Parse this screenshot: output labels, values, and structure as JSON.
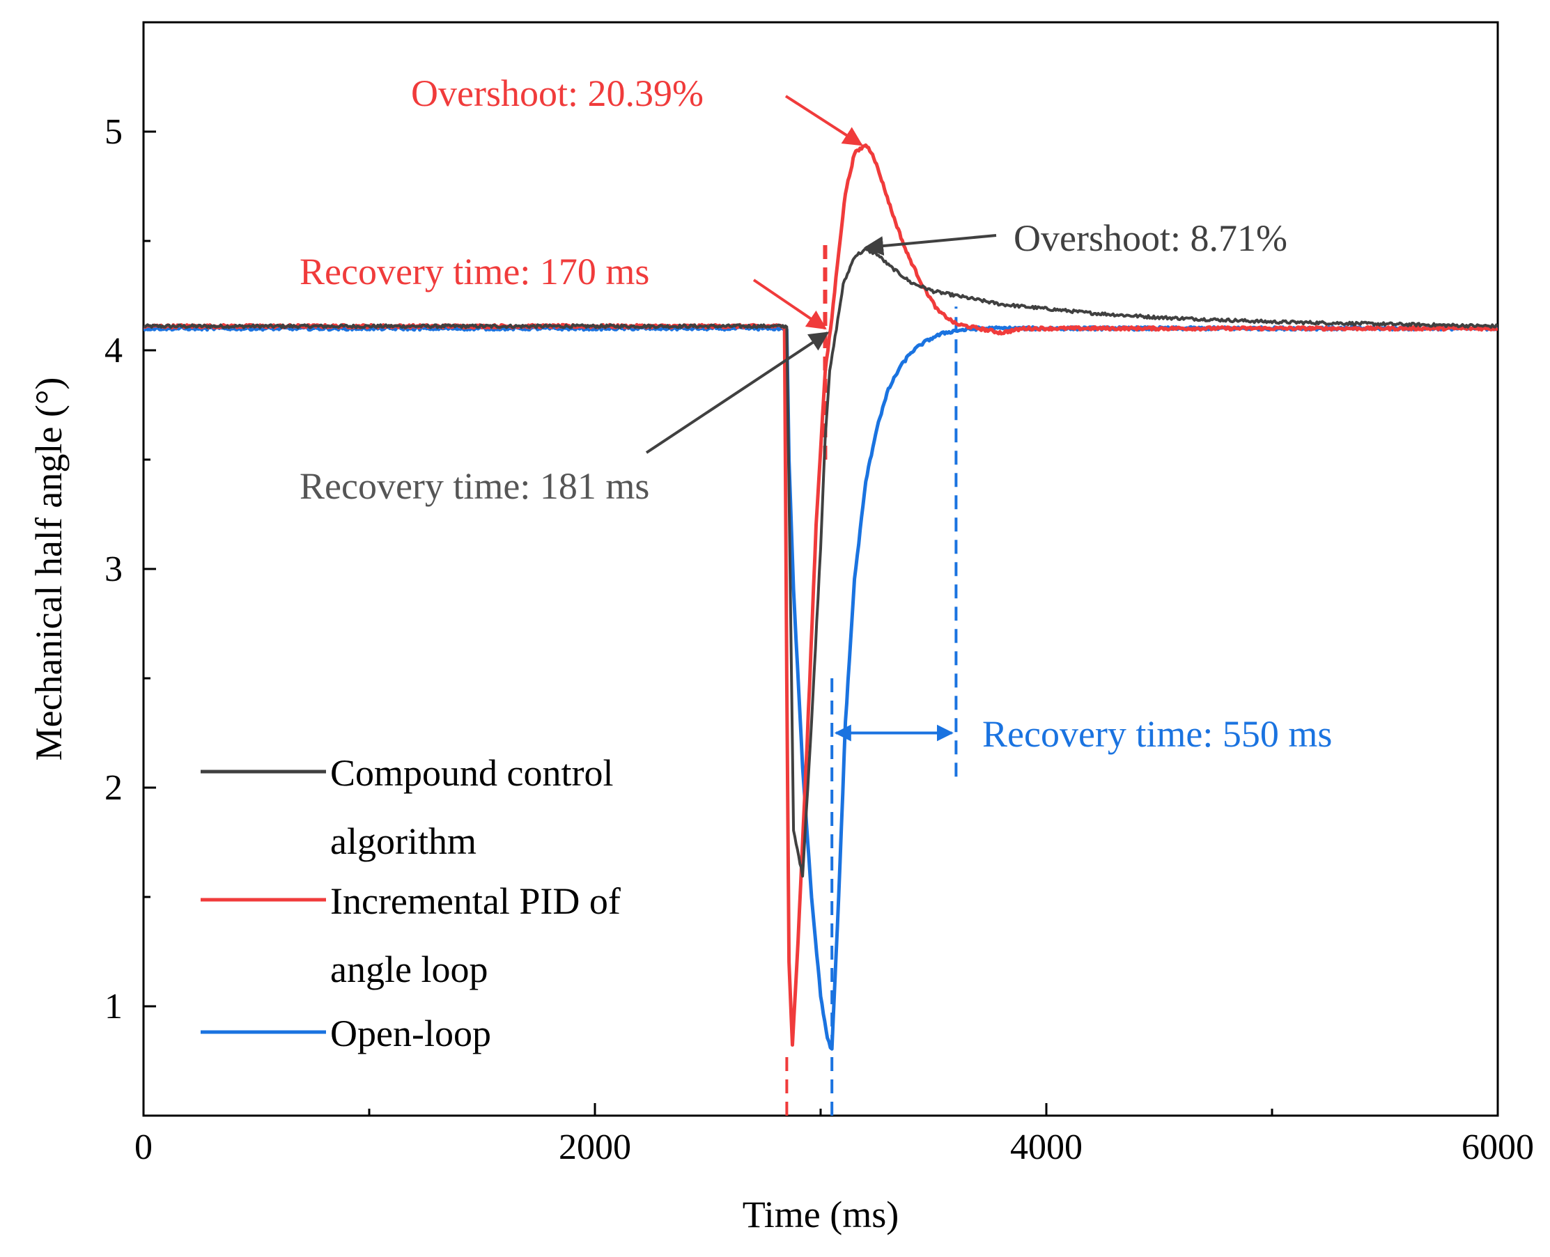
{
  "chart_data": {
    "type": "line",
    "title": "",
    "xlabel": "Time (ms)",
    "ylabel": "Mechanical half angle (°)",
    "xlim": [
      0,
      6000
    ],
    "ylim": [
      0.5,
      5.5
    ],
    "xticks": [
      0,
      2000,
      4000,
      6000
    ],
    "xtick_labels": [
      "0",
      "2000",
      "4000",
      "6000"
    ],
    "xminor": [
      1000,
      3000,
      5000
    ],
    "yticks": [
      1,
      2,
      3,
      4,
      5
    ],
    "ytick_labels": [
      "1",
      "2",
      "3",
      "4",
      "5"
    ],
    "yminor": [
      1.5,
      2.5,
      3.5,
      4.5
    ],
    "grid": false,
    "legend_position": "lower-left",
    "series": [
      {
        "name": "Compound control algorithm",
        "legend_lines": [
          "Compound control",
          "algorithm"
        ],
        "color": "#404040",
        "x": [
          0,
          2850,
          2862,
          2880,
          2920,
          2960,
          3000,
          3020,
          3040,
          3070,
          3100,
          3150,
          3200,
          3250,
          3300,
          3350,
          3400,
          3500,
          3600,
          3700,
          3800,
          4000,
          4200,
          4500,
          5000,
          5500,
          6000
        ],
        "y": [
          4.11,
          4.11,
          3.2,
          1.8,
          1.6,
          2.3,
          3.1,
          3.6,
          3.9,
          4.1,
          4.3,
          4.43,
          4.46,
          4.44,
          4.39,
          4.35,
          4.31,
          4.27,
          4.25,
          4.23,
          4.21,
          4.19,
          4.17,
          4.15,
          4.13,
          4.12,
          4.11
        ]
      },
      {
        "name": "Incremental PID of angle loop",
        "legend_lines": [
          "Incremental PID of",
          "angle loop"
        ],
        "color": "#f03b3b",
        "x": [
          0,
          2840,
          2850,
          2860,
          2875,
          2900,
          2940,
          2980,
          3020,
          3050,
          3080,
          3110,
          3150,
          3200,
          3230,
          3270,
          3320,
          3380,
          3450,
          3520,
          3600,
          3700,
          3800,
          3900,
          4000,
          5000,
          6000
        ],
        "y": [
          4.11,
          4.11,
          2.5,
          1.2,
          0.82,
          1.3,
          2.2,
          3.2,
          3.9,
          4.15,
          4.45,
          4.72,
          4.9,
          4.94,
          4.9,
          4.78,
          4.62,
          4.45,
          4.3,
          4.18,
          4.12,
          4.1,
          4.08,
          4.1,
          4.1,
          4.1,
          4.1
        ]
      },
      {
        "name": "Open-loop",
        "legend_lines": [
          "Open-loop"
        ],
        "color": "#1a73e0",
        "x": [
          0,
          2850,
          2860,
          2880,
          2920,
          2960,
          3000,
          3030,
          3050,
          3080,
          3110,
          3150,
          3200,
          3250,
          3300,
          3350,
          3400,
          3450,
          3500,
          3550,
          3600,
          3700,
          4000,
          5000,
          6000
        ],
        "y": [
          4.1,
          4.1,
          3.5,
          2.9,
          2.1,
          1.5,
          1.05,
          0.85,
          0.8,
          1.5,
          2.3,
          2.95,
          3.4,
          3.65,
          3.82,
          3.92,
          3.99,
          4.03,
          4.06,
          4.08,
          4.09,
          4.1,
          4.1,
          4.1,
          4.1
        ]
      }
    ],
    "annotations": {
      "red_overshoot": {
        "text": "Overshoot: 20.39%",
        "color": "#f03b3b",
        "target": [
          3180,
          4.94
        ]
      },
      "red_recovery": {
        "text": "Recovery time: 170 ms",
        "color": "#f03b3b",
        "target": [
          3020,
          4.1
        ]
      },
      "gray_overshoot": {
        "text": "Overshoot: 8.71%",
        "color": "#404040",
        "target": [
          3200,
          4.47
        ]
      },
      "gray_recovery": {
        "text": "Recovery time: 181 ms",
        "color": "#555555",
        "target": [
          3030,
          4.08
        ]
      },
      "blue_recovery": {
        "text": "Recovery time: 550 ms",
        "color": "#1a73e0",
        "span": [
          3050,
          3600
        ],
        "y": 2.25
      }
    },
    "reference_lines": [
      {
        "x": 2850,
        "y1": 0.5,
        "y2": 0.8,
        "color": "#f03b3b"
      },
      {
        "x": 3020,
        "y1": 3.5,
        "y2": 4.5,
        "color": "#f03b3b"
      },
      {
        "x": 3050,
        "y1": 0.5,
        "y2": 2.5,
        "color": "#1a73e0"
      },
      {
        "x": 3600,
        "y1": 2.05,
        "y2": 4.2,
        "color": "#1a73e0"
      }
    ]
  }
}
